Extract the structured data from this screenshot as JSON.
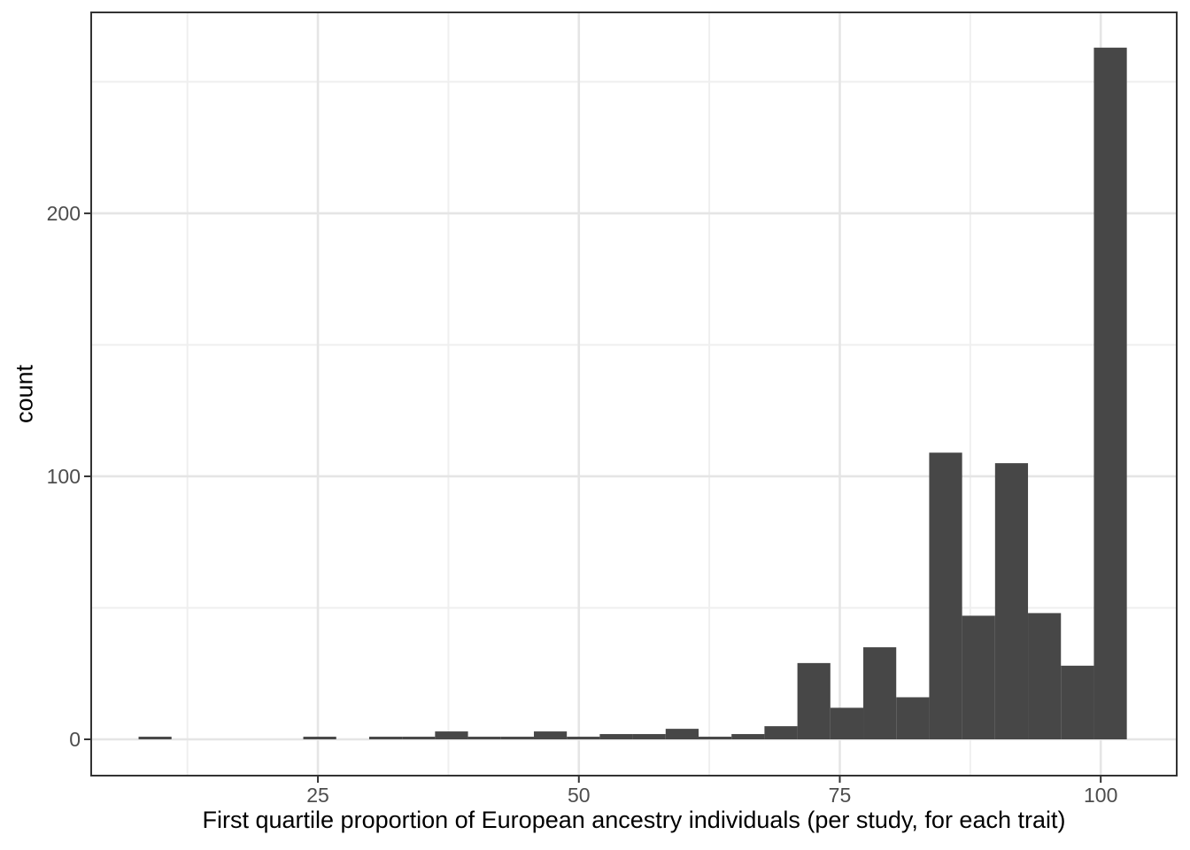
{
  "chart_data": {
    "type": "bar",
    "subtype": "histogram",
    "title": "",
    "xlabel": "First quartile proportion of European ancestry individuals (per study, for each trait)",
    "ylabel": "count",
    "bins": {
      "start": 7.82,
      "width": 3.156,
      "counts": [
        1,
        0,
        0,
        0,
        0,
        1,
        0,
        1,
        1,
        3,
        1,
        1,
        3,
        1,
        2,
        2,
        4,
        1,
        2,
        5,
        29,
        12,
        35,
        16,
        109,
        47,
        105,
        48,
        28,
        263
      ]
    },
    "x_axis": {
      "range": [
        3.28,
        107.28
      ],
      "ticks": [
        {
          "v": 25,
          "label": "25"
        },
        {
          "v": 50,
          "label": "50"
        },
        {
          "v": 75,
          "label": "75"
        },
        {
          "v": 100,
          "label": "100"
        }
      ],
      "minor": [
        12.5,
        37.5,
        62.5,
        87.5
      ]
    },
    "y_axis": {
      "range": [
        -13.8,
        276.4
      ],
      "ticks": [
        {
          "v": 0,
          "label": "0"
        },
        {
          "v": 100,
          "label": "100"
        },
        {
          "v": 200,
          "label": "200"
        }
      ],
      "minor": [
        50,
        150,
        250
      ]
    },
    "grid": true,
    "legend": "none",
    "style": {
      "bar_color": "#474747",
      "grid_major_color": "#e5e5e5",
      "grid_minor_color": "#efefef",
      "panel_border_color": "#333333",
      "tick_color": "#333333",
      "tick_label_color": "#4d4d4d",
      "axis_title_color": "#000000",
      "background": "#ffffff"
    }
  }
}
